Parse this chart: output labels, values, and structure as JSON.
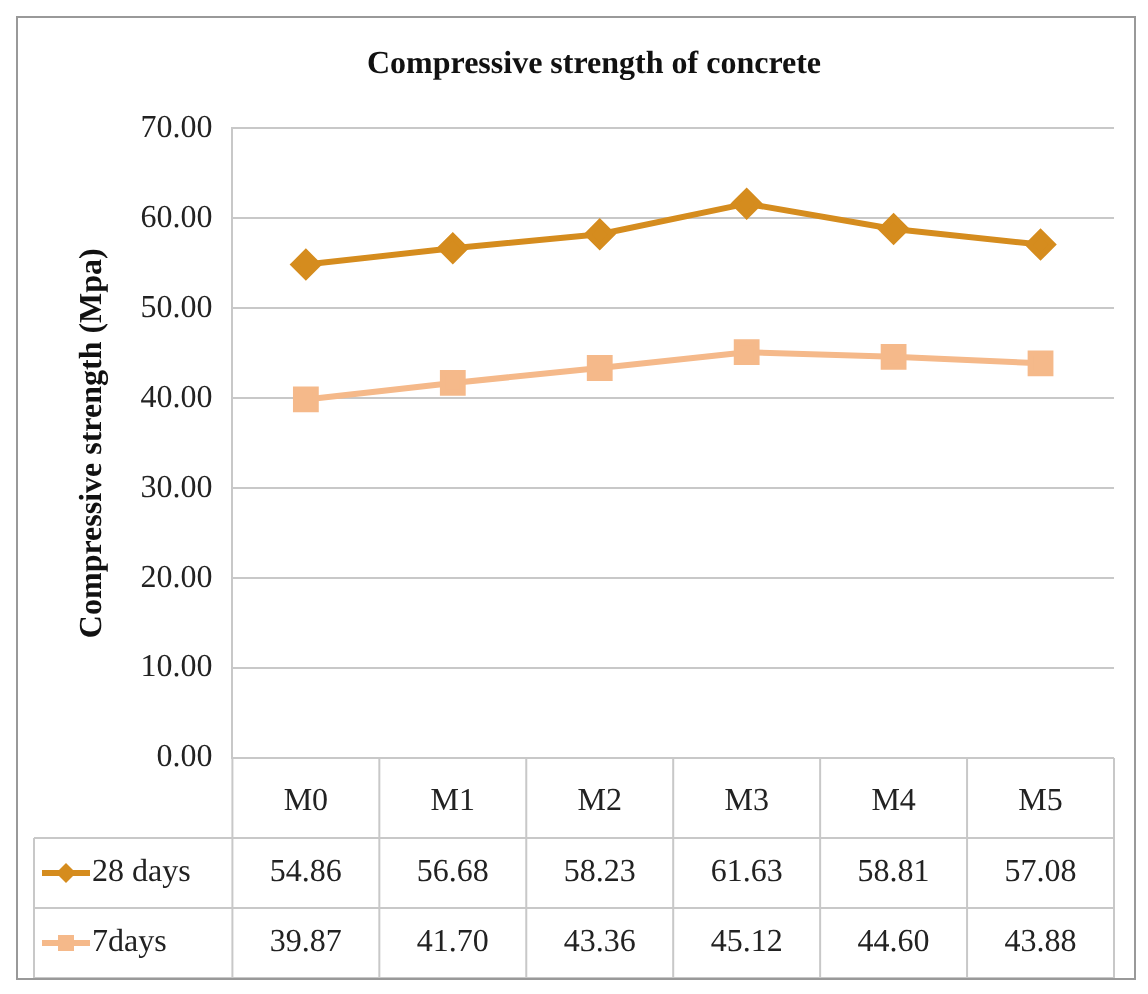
{
  "chart_data": {
    "type": "line",
    "title": "Compressive strength of concrete",
    "ylabel": "Compressive strength (Mpa)",
    "categories": [
      "M0",
      "M1",
      "M2",
      "M3",
      "M4",
      "M5"
    ],
    "series": [
      {
        "name": "28 days",
        "color": "#d58c1e",
        "marker": "diamond",
        "values": [
          54.86,
          56.68,
          58.23,
          61.63,
          58.81,
          57.08
        ],
        "value_labels": [
          "54.86",
          "56.68",
          "58.23",
          "61.63",
          "58.81",
          "57.08"
        ]
      },
      {
        "name": "7days",
        "color": "#f5b98a",
        "marker": "square",
        "values": [
          39.87,
          41.7,
          43.36,
          45.12,
          44.6,
          43.88
        ],
        "value_labels": [
          "39.87",
          "41.70",
          "43.36",
          "45.12",
          "44.60",
          "43.88"
        ]
      }
    ],
    "ylim": [
      0,
      70
    ],
    "yticks": [
      {
        "value": 0,
        "label": "0.00"
      },
      {
        "value": 10,
        "label": "10.00"
      },
      {
        "value": 20,
        "label": "20.00"
      },
      {
        "value": 30,
        "label": "30.00"
      },
      {
        "value": 40,
        "label": "40.00"
      },
      {
        "value": 50,
        "label": "50.00"
      },
      {
        "value": 60,
        "label": "60.00"
      },
      {
        "value": 70,
        "label": "70.00"
      }
    ],
    "grid": "y",
    "legend": "bottom",
    "line_style": "solid"
  }
}
